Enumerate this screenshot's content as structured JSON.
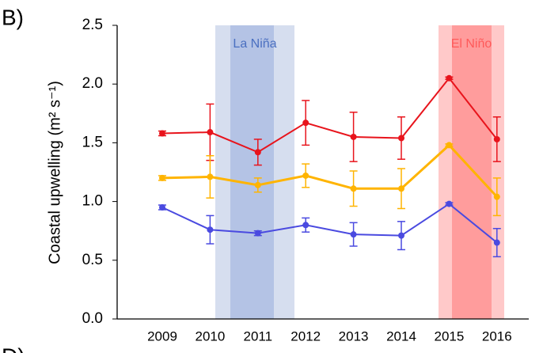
{
  "chart_data": {
    "type": "line",
    "panel_label": "B)",
    "next_panel_label": "D)",
    "ylabel": "Coastal upwelling (m² s⁻¹)",
    "categories": [
      "2009",
      "2010",
      "2011",
      "2012",
      "2013",
      "2014",
      "2015",
      "2016"
    ],
    "ylim": [
      0,
      2.5
    ],
    "yticks": [
      {
        "value": 0,
        "label": "0.0"
      },
      0.5,
      {
        "value": 1,
        "label": "1.0"
      },
      {
        "value": 1.5,
        "label": "1.5"
      },
      {
        "value": 2,
        "label": "2.0"
      },
      2.5
    ],
    "annotations": [
      {
        "text": "La Niña",
        "color": "#4a6fc0"
      },
      {
        "text": "El Niño",
        "color": "#ff5a5a"
      }
    ],
    "series": [
      {
        "color": "#e8141c",
        "values": [
          1.58,
          1.59,
          1.42,
          1.67,
          1.55,
          1.54,
          2.05,
          1.53
        ],
        "errors": [
          0.02,
          0.24,
          0.11,
          0.19,
          0.21,
          0.18,
          0.01,
          0.19
        ]
      },
      {
        "color": "#ffb400",
        "values": [
          1.2,
          1.21,
          1.14,
          1.22,
          1.11,
          1.11,
          1.48,
          1.04
        ],
        "errors": [
          0.02,
          0.18,
          0.06,
          0.1,
          0.15,
          0.17,
          0.01,
          0.16
        ]
      },
      {
        "color": "#4a4ae0",
        "values": [
          0.95,
          0.76,
          0.73,
          0.8,
          0.72,
          0.71,
          0.98,
          0.65
        ],
        "errors": [
          0.02,
          0.12,
          0.02,
          0.06,
          0.1,
          0.12,
          0.01,
          0.12
        ]
      }
    ]
  }
}
